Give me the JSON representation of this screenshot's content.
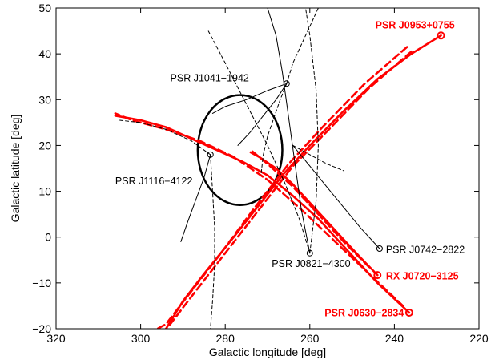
{
  "chart_data": {
    "type": "line",
    "title": "",
    "xlabel": "Galactic longitude [deg]",
    "ylabel": "Galactic latitude [deg]",
    "xlim": [
      320,
      220
    ],
    "ylim": [
      -20,
      50
    ],
    "x_ticks": [
      320,
      300,
      280,
      260,
      240,
      220
    ],
    "y_ticks": [
      -20,
      -10,
      0,
      10,
      20,
      30,
      40,
      50
    ],
    "x_tick_labels": [
      "320",
      "300",
      "280",
      "260",
      "240",
      "220"
    ],
    "y_tick_labels": [
      "−20",
      "−10",
      "0",
      "10",
      "20",
      "30",
      "40",
      "50"
    ],
    "grid": false,
    "colors": {
      "highlight": "#ff0000",
      "normal": "#000000"
    },
    "circle": {
      "center": [
        276.5,
        19
      ],
      "radius_x": 10,
      "radius_y": 12
    },
    "pulsars": [
      {
        "name": "PSR J0953+0755",
        "pos": [
          229,
          44
        ],
        "highlight": true,
        "paths": [
          {
            "style": "solid",
            "points": [
              [
                229,
                44
              ],
              [
                236,
                40
              ],
              [
                244,
                34.5
              ],
              [
                252,
                27.5
              ],
              [
                260,
                20
              ],
              [
                266,
                14
              ],
              [
                272,
                7
              ],
              [
                278,
                0
              ],
              [
                285,
                -8
              ],
              [
                290,
                -14
              ],
              [
                294,
                -20
              ]
            ]
          },
          {
            "style": "dashed",
            "points": [
              [
                236,
                40.5
              ],
              [
                246,
                32.5
              ],
              [
                256,
                23
              ],
              [
                264,
                15.5
              ],
              [
                272,
                6
              ],
              [
                280,
                -3.5
              ],
              [
                288,
                -13
              ],
              [
                293,
                -19
              ],
              [
                294,
                -20
              ]
            ]
          },
          {
            "style": "dashed",
            "points": [
              [
                237,
                41.5
              ],
              [
                247,
                33.5
              ],
              [
                257,
                24
              ],
              [
                265,
                16
              ],
              [
                273,
                6.5
              ],
              [
                281,
                -3.5
              ],
              [
                289,
                -13
              ],
              [
                294,
                -19
              ],
              [
                296,
                -20
              ]
            ]
          }
        ]
      },
      {
        "name": "PSR J0630−2834",
        "pos": [
          236.5,
          -16.5
        ],
        "highlight": true,
        "paths": [
          {
            "style": "solid",
            "points": [
              [
                236.5,
                -16.5
              ],
              [
                244,
                -10
              ],
              [
                252,
                -2
              ],
              [
                258,
                4
              ],
              [
                264,
                9
              ],
              [
                270,
                13.5
              ],
              [
                276,
                16.5
              ],
              [
                282,
                19
              ],
              [
                288,
                21.5
              ],
              [
                294,
                24
              ],
              [
                300,
                25.5
              ],
              [
                306,
                26.5
              ]
            ]
          },
          {
            "style": "dashed",
            "points": [
              [
                238,
                -15
              ],
              [
                246,
                -8
              ],
              [
                254,
                -1
              ],
              [
                262,
                6
              ],
              [
                270,
                12.5
              ],
              [
                278,
                17.5
              ],
              [
                286,
                21
              ],
              [
                294,
                23.5
              ],
              [
                302,
                25.5
              ],
              [
                306,
                27
              ]
            ]
          }
        ]
      },
      {
        "name": "RX J0720−3125",
        "pos": [
          244,
          -8.3
        ],
        "highlight": true,
        "paths": [
          {
            "style": "solid",
            "points": [
              [
                244,
                -8.3
              ],
              [
                248,
                -4.5
              ],
              [
                252,
                -0.5
              ],
              [
                256,
                3.5
              ],
              [
                260,
                7.5
              ],
              [
                264,
                11.5
              ],
              [
                268,
                15
              ],
              [
                272,
                17.5
              ],
              [
                274,
                18.5
              ]
            ]
          },
          {
            "style": "dashed",
            "points": [
              [
                246,
                -6.5
              ],
              [
                252,
                -1
              ],
              [
                258,
                5
              ],
              [
                264,
                11
              ],
              [
                270,
                16
              ],
              [
                274,
                19
              ]
            ]
          }
        ]
      },
      {
        "name": "PSR J1041−1942",
        "pos": [
          265.5,
          33.5
        ],
        "highlight": false,
        "paths": [
          {
            "style": "solid",
            "points": [
              [
                265.5,
                33.5
              ],
              [
                268,
                30
              ],
              [
                271,
                26.5
              ],
              [
                274,
                23
              ],
              [
                277,
                20
              ]
            ]
          },
          {
            "style": "solid",
            "points": [
              [
                265.5,
                33.5
              ],
              [
                270,
                32
              ],
              [
                275,
                30
              ],
              [
                280,
                28.5
              ],
              [
                283,
                27
              ]
            ]
          },
          {
            "style": "dashed",
            "points": [
              [
                265.5,
                33.5
              ],
              [
                267,
                30
              ],
              [
                268.5,
                26
              ],
              [
                270,
                22
              ],
              [
                271,
                18
              ],
              [
                271.5,
                14
              ]
            ]
          },
          {
            "style": "dashed",
            "points": [
              [
                265.5,
                33.5
              ],
              [
                264,
                38
              ],
              [
                262,
                42
              ],
              [
                260,
                46
              ],
              [
                258,
                50
              ]
            ]
          }
        ]
      },
      {
        "name": "PSR J1116−4122",
        "pos": [
          283.5,
          18
        ],
        "highlight": false,
        "paths": [
          {
            "style": "solid",
            "points": [
              [
                283.5,
                18
              ],
              [
                285,
                13
              ],
              [
                287,
                8
              ],
              [
                289,
                3
              ],
              [
                290.5,
                -1
              ]
            ]
          },
          {
            "style": "dashed",
            "points": [
              [
                283.5,
                18
              ],
              [
                288,
                21
              ],
              [
                294,
                23.5
              ],
              [
                300,
                25
              ],
              [
                305,
                25.5
              ]
            ]
          },
          {
            "style": "dashed",
            "points": [
              [
                283.5,
                18
              ],
              [
                283,
                10
              ],
              [
                282.5,
                2
              ],
              [
                282.5,
                -6
              ],
              [
                283,
                -14
              ],
              [
                283.5,
                -20
              ]
            ]
          }
        ]
      },
      {
        "name": "PSR J0821−4300",
        "pos": [
          260,
          -3.5
        ],
        "highlight": false,
        "paths": [
          {
            "style": "solid",
            "points": [
              [
                260,
                -3.5
              ],
              [
                262,
                6
              ],
              [
                263.5,
                16
              ],
              [
                265,
                26
              ],
              [
                266.5,
                36
              ],
              [
                268,
                44
              ],
              [
                270,
                50
              ]
            ]
          },
          {
            "style": "dashed",
            "points": [
              [
                260,
                -3.5
              ],
              [
                258.5,
                8
              ],
              [
                258,
                20
              ],
              [
                258.5,
                32
              ],
              [
                260,
                44
              ],
              [
                261,
                50
              ]
            ]
          },
          {
            "style": "dashed",
            "points": [
              [
                260,
                -3.5
              ],
              [
                262.5,
                4
              ],
              [
                266,
                12
              ],
              [
                270,
                20
              ],
              [
                275,
                29
              ],
              [
                280,
                38
              ],
              [
                284,
                45
              ]
            ]
          }
        ]
      },
      {
        "name": "PSR J0742−2822",
        "pos": [
          243.5,
          -2.5
        ],
        "highlight": false,
        "paths": [
          {
            "style": "solid",
            "points": [
              [
                243.5,
                -2.5
              ],
              [
                248,
                2
              ],
              [
                252,
                6.5
              ],
              [
                256,
                11
              ],
              [
                260,
                15.5
              ],
              [
                264,
                20
              ]
            ]
          },
          {
            "style": "dashed",
            "points": [
              [
                264,
                20
              ],
              [
                260,
                18
              ],
              [
                256,
                16
              ],
              [
                252,
                14.5
              ]
            ]
          }
        ]
      }
    ],
    "labels": [
      {
        "text": "PSR J0953+0755",
        "x": 244.5,
        "y": 45.5,
        "highlight": true
      },
      {
        "text": "PSR J1041−1942",
        "x": 293,
        "y": 34,
        "highlight": false
      },
      {
        "text": "PSR J1116−4122",
        "x": 306,
        "y": 11.5,
        "highlight": false
      },
      {
        "text": "PSR J0742−2822",
        "x": 242,
        "y": -3.5,
        "highlight": false
      },
      {
        "text": "PSR J0821−4300",
        "x": 269,
        "y": -6.5,
        "highlight": false
      },
      {
        "text": "RX J0720−3125",
        "x": 242,
        "y": -9.2,
        "highlight": true
      },
      {
        "text": "PSR J0630−2834",
        "x": 256.5,
        "y": -17.3,
        "highlight": true
      }
    ]
  }
}
